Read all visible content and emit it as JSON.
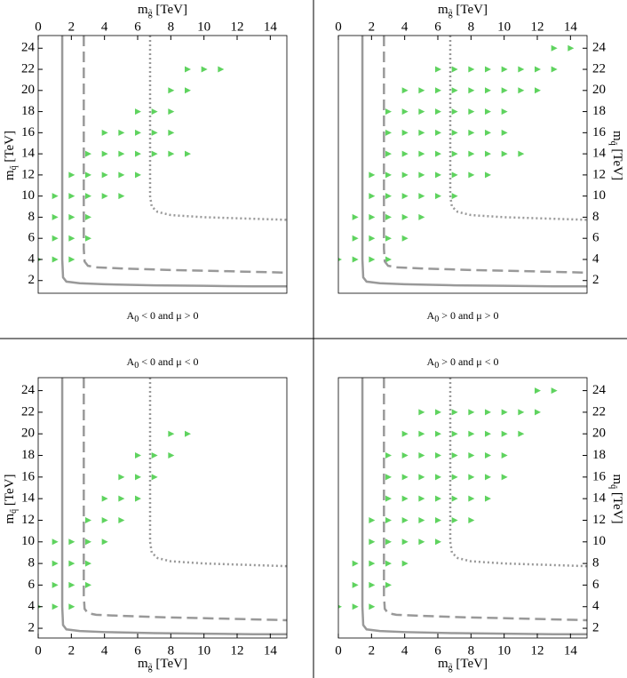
{
  "chart_data": [
    {
      "type": "scatter",
      "xaxis": "top",
      "yaxis": "left",
      "xlabel": [
        "m",
        "g̃",
        " [TeV]"
      ],
      "ylabel": [
        "m",
        "q̃",
        " [TeV]"
      ],
      "caption": [
        "A",
        "0",
        " < 0 and μ > 0"
      ],
      "xlim": [
        0,
        15
      ],
      "ylim": [
        0.8,
        25.2
      ],
      "xticks": [
        0,
        2,
        4,
        6,
        8,
        10,
        12,
        14
      ],
      "yticks": [
        2,
        4,
        6,
        8,
        10,
        12,
        14,
        16,
        18,
        20,
        22,
        24
      ],
      "series": [
        {
          "color": "#5fd35f",
          "x": [
            0,
            1,
            2,
            1,
            2,
            3,
            1,
            2,
            3,
            1,
            2,
            3,
            4,
            5,
            2,
            3,
            4,
            5,
            6,
            3,
            4,
            5,
            6,
            7,
            8,
            9,
            4,
            5,
            6,
            7,
            8,
            6,
            7,
            8,
            8,
            9,
            9,
            10,
            11
          ],
          "values": [
            4,
            4,
            4,
            6,
            6,
            6,
            8,
            8,
            8,
            10,
            10,
            10,
            10,
            10,
            12,
            12,
            12,
            12,
            12,
            14,
            14,
            14,
            14,
            14,
            14,
            14,
            16,
            16,
            16,
            16,
            16,
            18,
            18,
            18,
            20,
            20,
            22,
            22,
            22
          ]
        }
      ],
      "curves": [
        {
          "style": "solid",
          "color": "#999999",
          "x": [
            1.45,
            1.45,
            1.5,
            1.7,
            2.5,
            4,
            7,
            10,
            13,
            15
          ],
          "values": [
            25.2,
            4,
            2.3,
            1.9,
            1.75,
            1.65,
            1.55,
            1.5,
            1.45,
            1.45
          ]
        },
        {
          "style": "dashed",
          "color": "#999999",
          "x": [
            2.75,
            2.75,
            2.8,
            3.0,
            3.5,
            5,
            8,
            11,
            15
          ],
          "values": [
            25.2,
            5,
            3.8,
            3.4,
            3.25,
            3.15,
            3.0,
            2.9,
            2.75
          ]
        },
        {
          "style": "dotted",
          "color": "#999999",
          "x": [
            6.75,
            6.75,
            6.85,
            7.2,
            8,
            10,
            12,
            15
          ],
          "values": [
            25.2,
            10,
            9,
            8.5,
            8.2,
            8.0,
            7.9,
            7.75
          ]
        }
      ]
    },
    {
      "type": "scatter",
      "xaxis": "top",
      "yaxis": "right",
      "xlabel": [
        "m",
        "g̃",
        " [TeV]"
      ],
      "ylabel": [
        "m",
        "q̃",
        " [TeV]"
      ],
      "caption": [
        "A",
        "0",
        " > 0 and μ > 0"
      ],
      "xlim": [
        0,
        15
      ],
      "ylim": [
        0.8,
        25.2
      ],
      "xticks": [
        0,
        2,
        4,
        6,
        8,
        10,
        12,
        14
      ],
      "yticks": [
        2,
        4,
        6,
        8,
        10,
        12,
        14,
        16,
        18,
        20,
        22,
        24
      ],
      "series": [
        {
          "color": "#5fd35f",
          "x": [
            0,
            1,
            2,
            3,
            1,
            2,
            3,
            4,
            1,
            2,
            3,
            4,
            5,
            2,
            3,
            4,
            5,
            6,
            7,
            2,
            3,
            4,
            5,
            6,
            7,
            8,
            9,
            3,
            4,
            5,
            6,
            7,
            8,
            9,
            10,
            11,
            3,
            4,
            5,
            6,
            7,
            8,
            9,
            10,
            3,
            4,
            5,
            6,
            7,
            8,
            9,
            10,
            4,
            5,
            6,
            7,
            8,
            9,
            10,
            11,
            12,
            6,
            7,
            8,
            9,
            10,
            11,
            12,
            13,
            13,
            14
          ],
          "values": [
            4,
            4,
            4,
            4,
            6,
            6,
            6,
            6,
            8,
            8,
            8,
            8,
            8,
            10,
            10,
            10,
            10,
            10,
            10,
            12,
            12,
            12,
            12,
            12,
            12,
            12,
            12,
            14,
            14,
            14,
            14,
            14,
            14,
            14,
            14,
            14,
            16,
            16,
            16,
            16,
            16,
            16,
            16,
            16,
            18,
            18,
            18,
            18,
            18,
            18,
            18,
            18,
            20,
            20,
            20,
            20,
            20,
            20,
            20,
            20,
            20,
            22,
            22,
            22,
            22,
            22,
            22,
            22,
            22,
            24,
            24
          ]
        }
      ],
      "curves": [
        {
          "style": "solid",
          "color": "#999999",
          "x": [
            1.45,
            1.45,
            1.5,
            1.7,
            2.5,
            4,
            7,
            10,
            13,
            15
          ],
          "values": [
            25.2,
            4,
            2.3,
            1.9,
            1.75,
            1.65,
            1.55,
            1.5,
            1.45,
            1.45
          ]
        },
        {
          "style": "dashed",
          "color": "#999999",
          "x": [
            2.75,
            2.75,
            2.8,
            3.0,
            3.5,
            5,
            8,
            11,
            15
          ],
          "values": [
            25.2,
            5,
            3.8,
            3.4,
            3.25,
            3.15,
            3.0,
            2.9,
            2.75
          ]
        },
        {
          "style": "dotted",
          "color": "#999999",
          "x": [
            6.75,
            6.75,
            6.85,
            7.2,
            8,
            10,
            12,
            15
          ],
          "values": [
            25.2,
            10,
            9,
            8.5,
            8.2,
            8.0,
            7.9,
            7.75
          ]
        }
      ]
    },
    {
      "type": "scatter",
      "xaxis": "bottom",
      "yaxis": "left",
      "xlabel": [
        "m",
        "g̃",
        " [TeV]"
      ],
      "ylabel": [
        "m",
        "q̃",
        " [TeV]"
      ],
      "caption": [
        "A",
        "0",
        " < 0 and μ < 0"
      ],
      "xlim": [
        0,
        15
      ],
      "ylim": [
        1.1,
        25.2
      ],
      "xticks": [
        0,
        2,
        4,
        6,
        8,
        10,
        12,
        14
      ],
      "yticks": [
        2,
        4,
        6,
        8,
        10,
        12,
        14,
        16,
        18,
        20,
        22,
        24
      ],
      "series": [
        {
          "color": "#5fd35f",
          "x": [
            0,
            1,
            2,
            1,
            2,
            3,
            1,
            2,
            3,
            1,
            2,
            3,
            4,
            3,
            4,
            5,
            4,
            5,
            6,
            5,
            6,
            7,
            6,
            7,
            8,
            8,
            9
          ],
          "values": [
            4,
            4,
            4,
            6,
            6,
            6,
            8,
            8,
            8,
            10,
            10,
            10,
            10,
            12,
            12,
            12,
            14,
            14,
            14,
            16,
            16,
            16,
            18,
            18,
            18,
            20,
            20
          ]
        }
      ],
      "curves": [
        {
          "style": "solid",
          "color": "#999999",
          "x": [
            1.45,
            1.45,
            1.5,
            1.7,
            2.5,
            4,
            7,
            10,
            13,
            15
          ],
          "values": [
            25.2,
            4,
            2.3,
            1.9,
            1.75,
            1.65,
            1.55,
            1.5,
            1.45,
            1.45
          ]
        },
        {
          "style": "dashed",
          "color": "#999999",
          "x": [
            2.75,
            2.75,
            2.8,
            3.0,
            3.5,
            5,
            8,
            11,
            15
          ],
          "values": [
            25.2,
            5,
            3.8,
            3.4,
            3.25,
            3.15,
            3.0,
            2.9,
            2.75
          ]
        },
        {
          "style": "dotted",
          "color": "#999999",
          "x": [
            6.75,
            6.75,
            6.85,
            7.2,
            8,
            10,
            12,
            15
          ],
          "values": [
            25.2,
            10,
            9,
            8.5,
            8.2,
            8.0,
            7.9,
            7.75
          ]
        }
      ]
    },
    {
      "type": "scatter",
      "xaxis": "bottom",
      "yaxis": "right",
      "xlabel": [
        "m",
        "g̃",
        " [TeV]"
      ],
      "ylabel": [
        "m",
        "q̃",
        " [TeV]"
      ],
      "caption": [
        "A",
        "0",
        " > 0 and μ < 0"
      ],
      "xlim": [
        0,
        15
      ],
      "ylim": [
        1.1,
        25.2
      ],
      "xticks": [
        0,
        2,
        4,
        6,
        8,
        10,
        12,
        14
      ],
      "yticks": [
        2,
        4,
        6,
        8,
        10,
        12,
        14,
        16,
        18,
        20,
        22,
        24
      ],
      "series": [
        {
          "color": "#5fd35f",
          "x": [
            0,
            1,
            2,
            1,
            2,
            3,
            1,
            2,
            3,
            4,
            2,
            3,
            4,
            5,
            6,
            2,
            3,
            4,
            5,
            6,
            7,
            8,
            3,
            4,
            5,
            6,
            7,
            8,
            9,
            3,
            4,
            5,
            6,
            7,
            8,
            9,
            10,
            3,
            4,
            5,
            6,
            7,
            8,
            9,
            10,
            4,
            5,
            6,
            7,
            8,
            9,
            10,
            11,
            5,
            6,
            7,
            8,
            9,
            10,
            11,
            12,
            12,
            13
          ],
          "values": [
            4,
            4,
            4,
            6,
            6,
            6,
            8,
            8,
            8,
            8,
            10,
            10,
            10,
            10,
            10,
            12,
            12,
            12,
            12,
            12,
            12,
            12,
            14,
            14,
            14,
            14,
            14,
            14,
            14,
            16,
            16,
            16,
            16,
            16,
            16,
            16,
            16,
            18,
            18,
            18,
            18,
            18,
            18,
            18,
            18,
            20,
            20,
            20,
            20,
            20,
            20,
            20,
            20,
            22,
            22,
            22,
            22,
            22,
            22,
            22,
            22,
            24,
            24
          ]
        }
      ],
      "curves": [
        {
          "style": "solid",
          "color": "#999999",
          "x": [
            1.45,
            1.45,
            1.5,
            1.7,
            2.5,
            4,
            7,
            10,
            13,
            15
          ],
          "values": [
            25.2,
            4,
            2.3,
            1.9,
            1.75,
            1.65,
            1.55,
            1.5,
            1.45,
            1.45
          ]
        },
        {
          "style": "dashed",
          "color": "#999999",
          "x": [
            2.75,
            2.75,
            2.8,
            3.0,
            3.5,
            5,
            8,
            11,
            15
          ],
          "values": [
            25.2,
            5,
            3.8,
            3.4,
            3.25,
            3.15,
            3.0,
            2.9,
            2.75
          ]
        },
        {
          "style": "dotted",
          "color": "#999999",
          "x": [
            6.75,
            6.75,
            6.85,
            7.2,
            8,
            10,
            12,
            15
          ],
          "values": [
            25.2,
            10,
            9,
            8.5,
            8.2,
            8.0,
            7.9,
            7.75
          ]
        }
      ]
    }
  ]
}
